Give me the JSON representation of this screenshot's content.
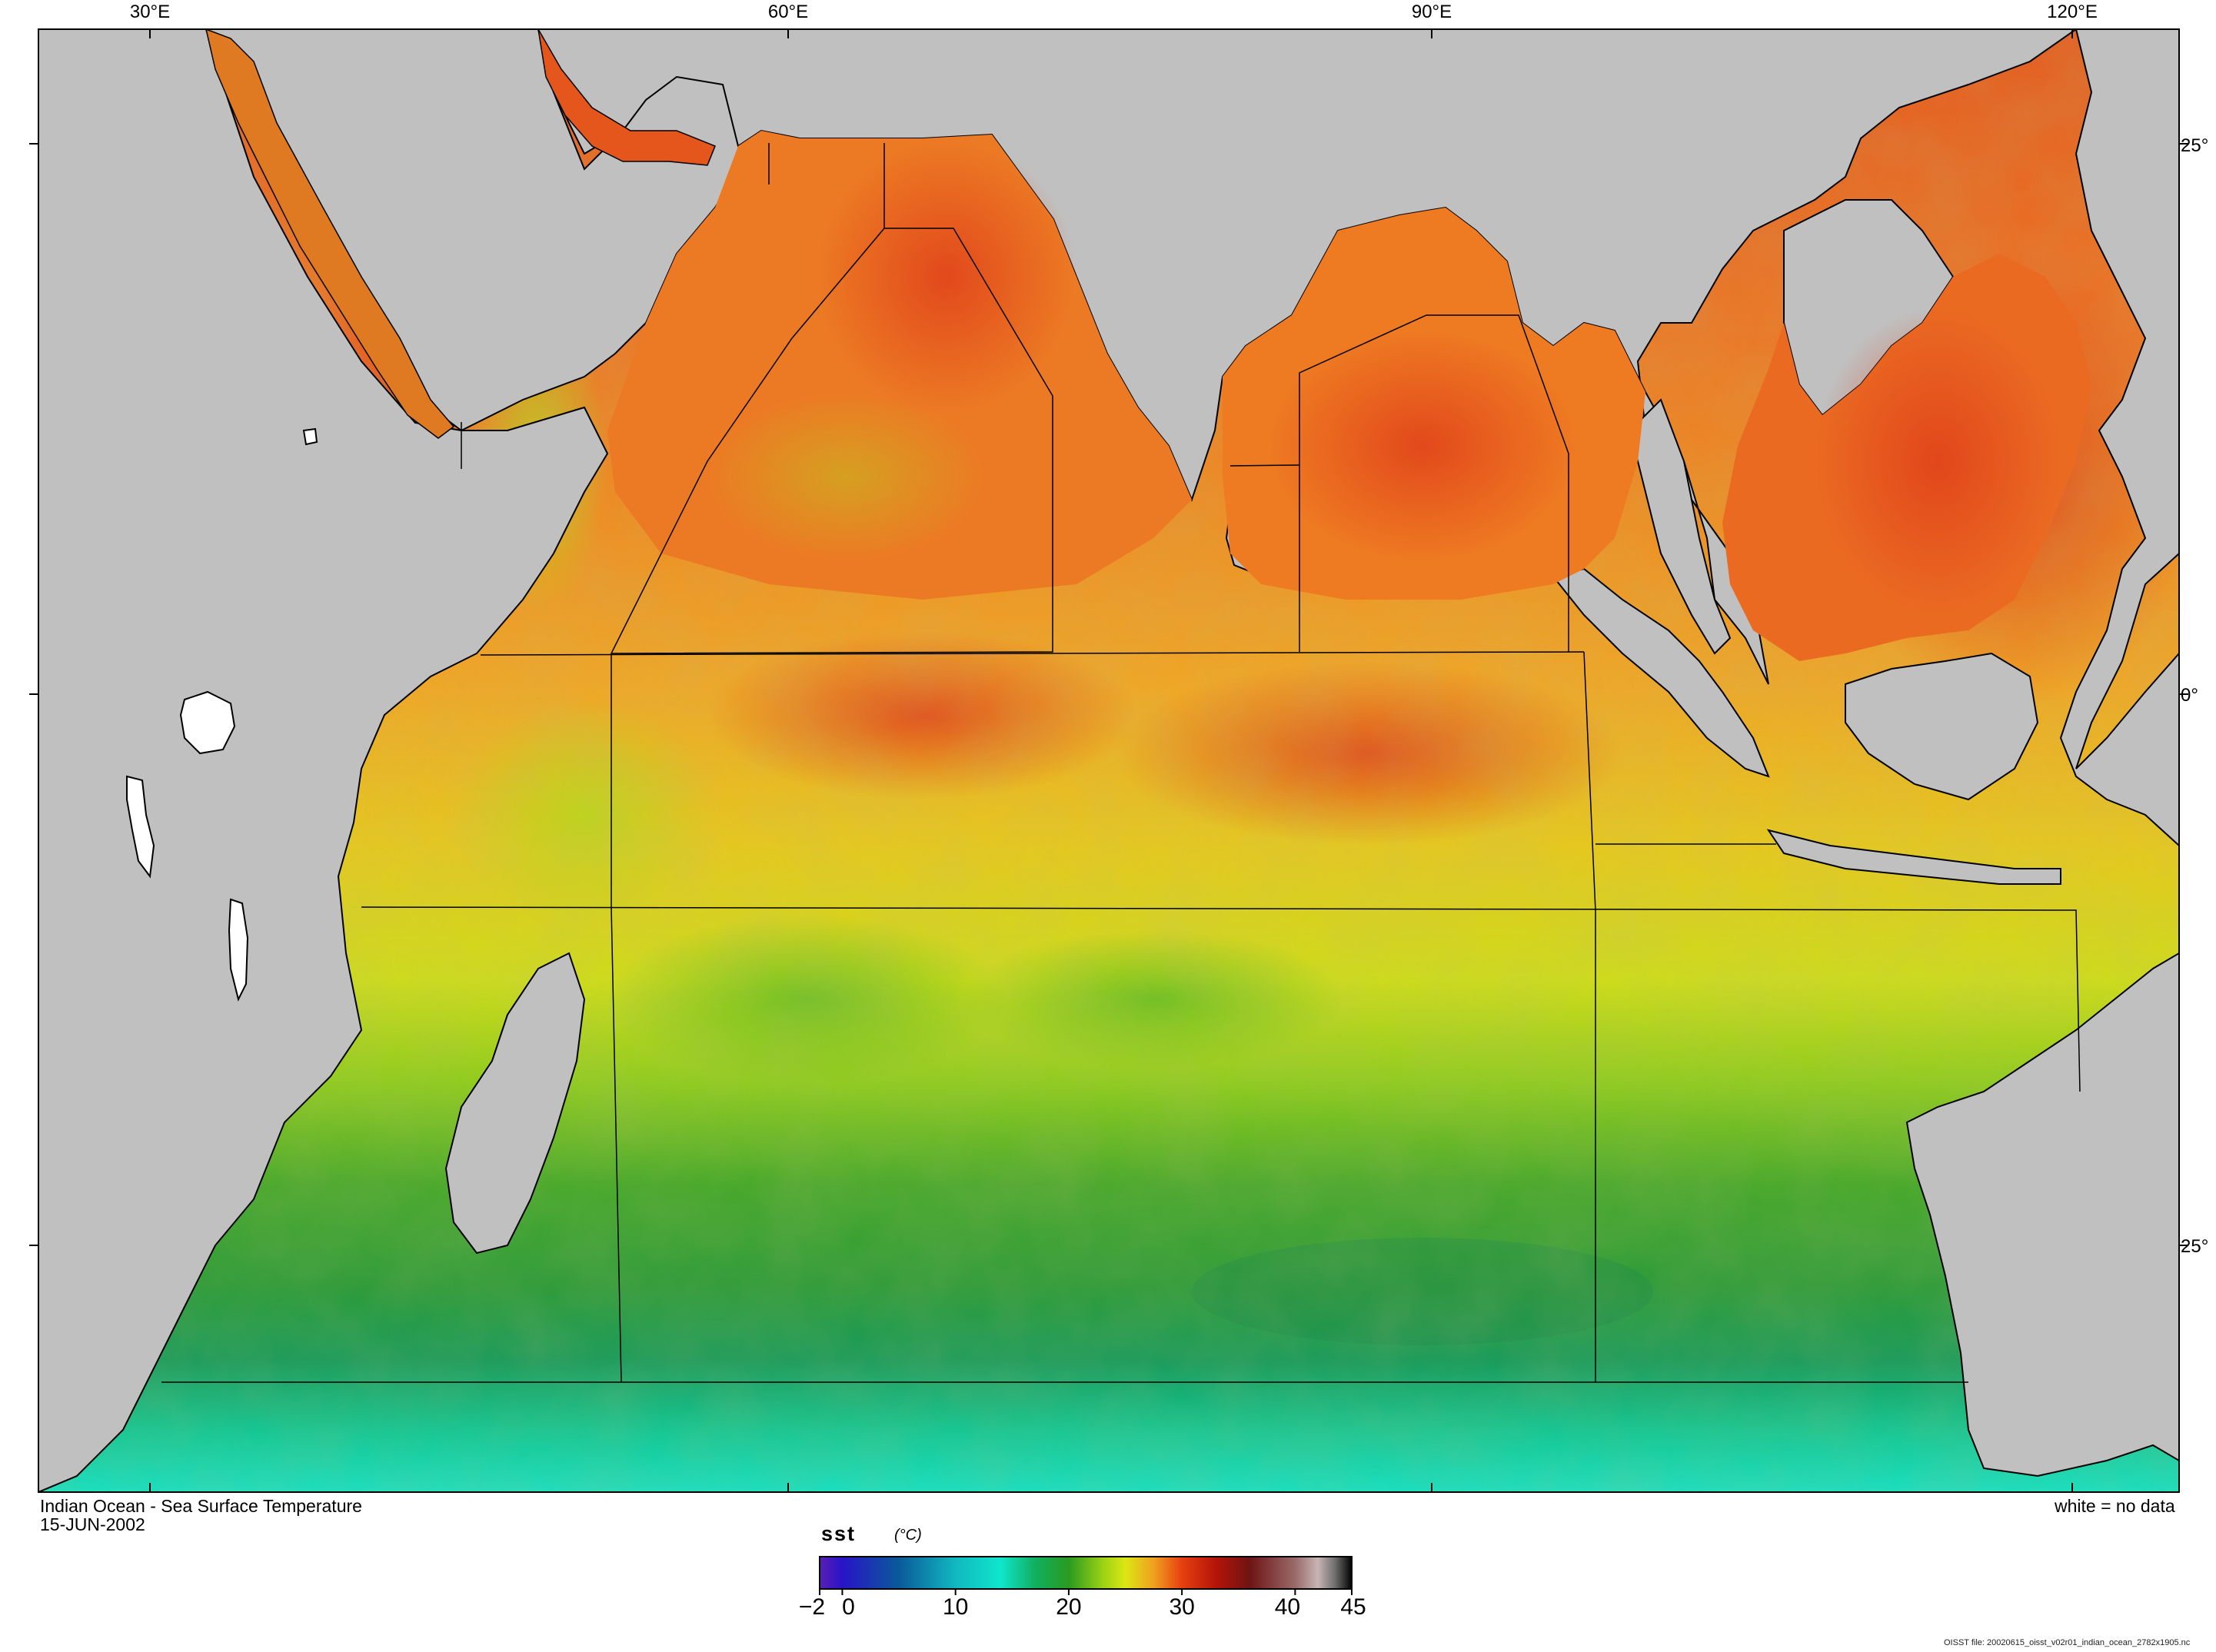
{
  "map": {
    "region": "Indian Ocean",
    "variable": "sst",
    "unit": "(°C)",
    "date": "15-JUN-2002",
    "land_color": "#c0c0c0",
    "no_data_color": "#ffffff",
    "lon_range": [
      25,
      126
    ],
    "lat_range": [
      -36,
      31
    ]
  },
  "labels": {
    "lon_ticks": [
      "30°E",
      "60°E",
      "90°E",
      "120°E"
    ],
    "lat_ticks": [
      "25°",
      "0°",
      "25°"
    ],
    "title": "Indian Ocean - Sea Surface Temperature",
    "date": "15-JUN-2002",
    "no_data_note": "white = no data",
    "file_note": "OISST file: 20020615_oisst_v02r01_indian_ocean_2782x1905.nc"
  },
  "colorbar": {
    "variable": "sst",
    "unit": "(°C)",
    "min": -2,
    "max": 45,
    "ticks": [
      "−2",
      "0",
      "10",
      "20",
      "30",
      "40",
      "45"
    ],
    "tick_values": [
      -2,
      0,
      10,
      20,
      30,
      40,
      45
    ],
    "stops": [
      {
        "v": -2,
        "c": "#5a1eb4"
      },
      {
        "v": 0,
        "c": "#2814c8"
      },
      {
        "v": 5,
        "c": "#0a5a9a"
      },
      {
        "v": 10,
        "c": "#10b8c0"
      },
      {
        "v": 14,
        "c": "#10e6cc"
      },
      {
        "v": 17,
        "c": "#10b060"
      },
      {
        "v": 20,
        "c": "#2a9a20"
      },
      {
        "v": 23,
        "c": "#9ad214"
      },
      {
        "v": 25,
        "c": "#dce614"
      },
      {
        "v": 27.5,
        "c": "#f0a020"
      },
      {
        "v": 30,
        "c": "#e64010"
      },
      {
        "v": 33,
        "c": "#b41408"
      },
      {
        "v": 36,
        "c": "#6e1414"
      },
      {
        "v": 40,
        "c": "#9a6a6a"
      },
      {
        "v": 42,
        "c": "#c8b4b4"
      },
      {
        "v": 43.5,
        "c": "#707070"
      },
      {
        "v": 45,
        "c": "#000000"
      }
    ]
  }
}
